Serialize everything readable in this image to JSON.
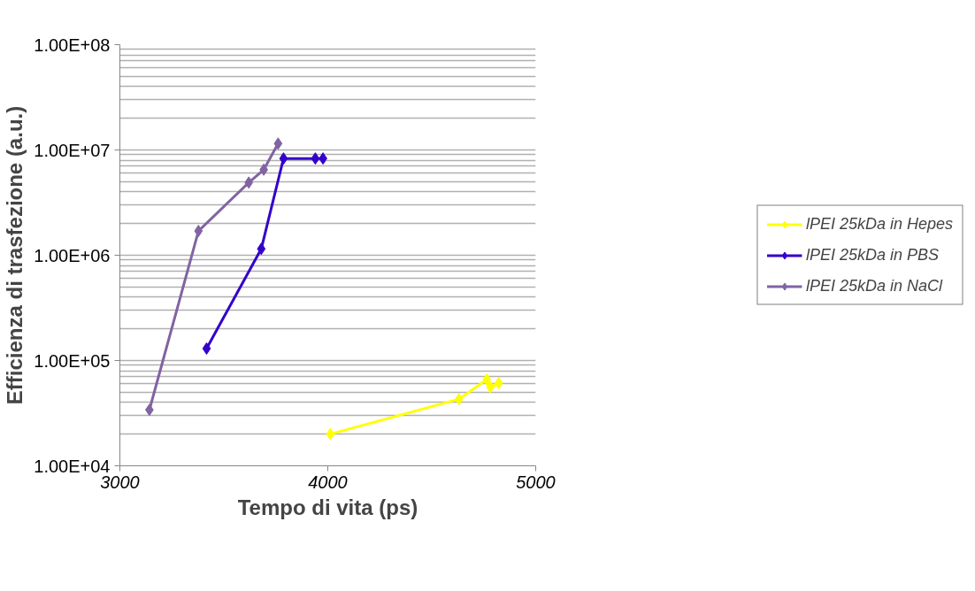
{
  "chart_data": {
    "type": "line",
    "xlabel": "Tempo di vita (ps)",
    "ylabel": "Efficienza di trasfezione (a.u.)",
    "log": "y",
    "grid": "y",
    "legend": "right",
    "marker": "diamond",
    "line_style": "solid",
    "xlim": [
      3000,
      5000
    ],
    "xticks": [
      3000,
      4000,
      5000
    ],
    "ylim": [
      10000,
      100000000
    ],
    "yticks": [
      {
        "value": 10000,
        "label": "1.00E+04"
      },
      {
        "value": 100000,
        "label": "1.00E+05"
      },
      {
        "value": 1000000,
        "label": "1.00E+06"
      },
      {
        "value": 10000000,
        "label": "1.00E+07"
      },
      {
        "value": 100000000,
        "label": "1.00E+08"
      }
    ],
    "series": [
      {
        "name": "lPEI 25kDa in Hepes",
        "color": "#ffff00",
        "x": [
          4012,
          4631,
          4765,
          4782,
          4822
        ],
        "values": [
          20000,
          43000,
          66000,
          56000,
          61000
        ]
      },
      {
        "name": "lPEI 25kDa in PBS",
        "color": "#3300cc",
        "x": [
          3417,
          3680,
          3787,
          3940,
          3977
        ],
        "values": [
          130000,
          1150000,
          8300000,
          8300000,
          8300000
        ]
      },
      {
        "name": "lPEI 25kDa in NaCl",
        "color": "#8064a2",
        "x": [
          3142,
          3378,
          3620,
          3692,
          3761
        ],
        "values": [
          34000,
          1700000,
          4900000,
          6500000,
          11500000
        ]
      }
    ]
  }
}
